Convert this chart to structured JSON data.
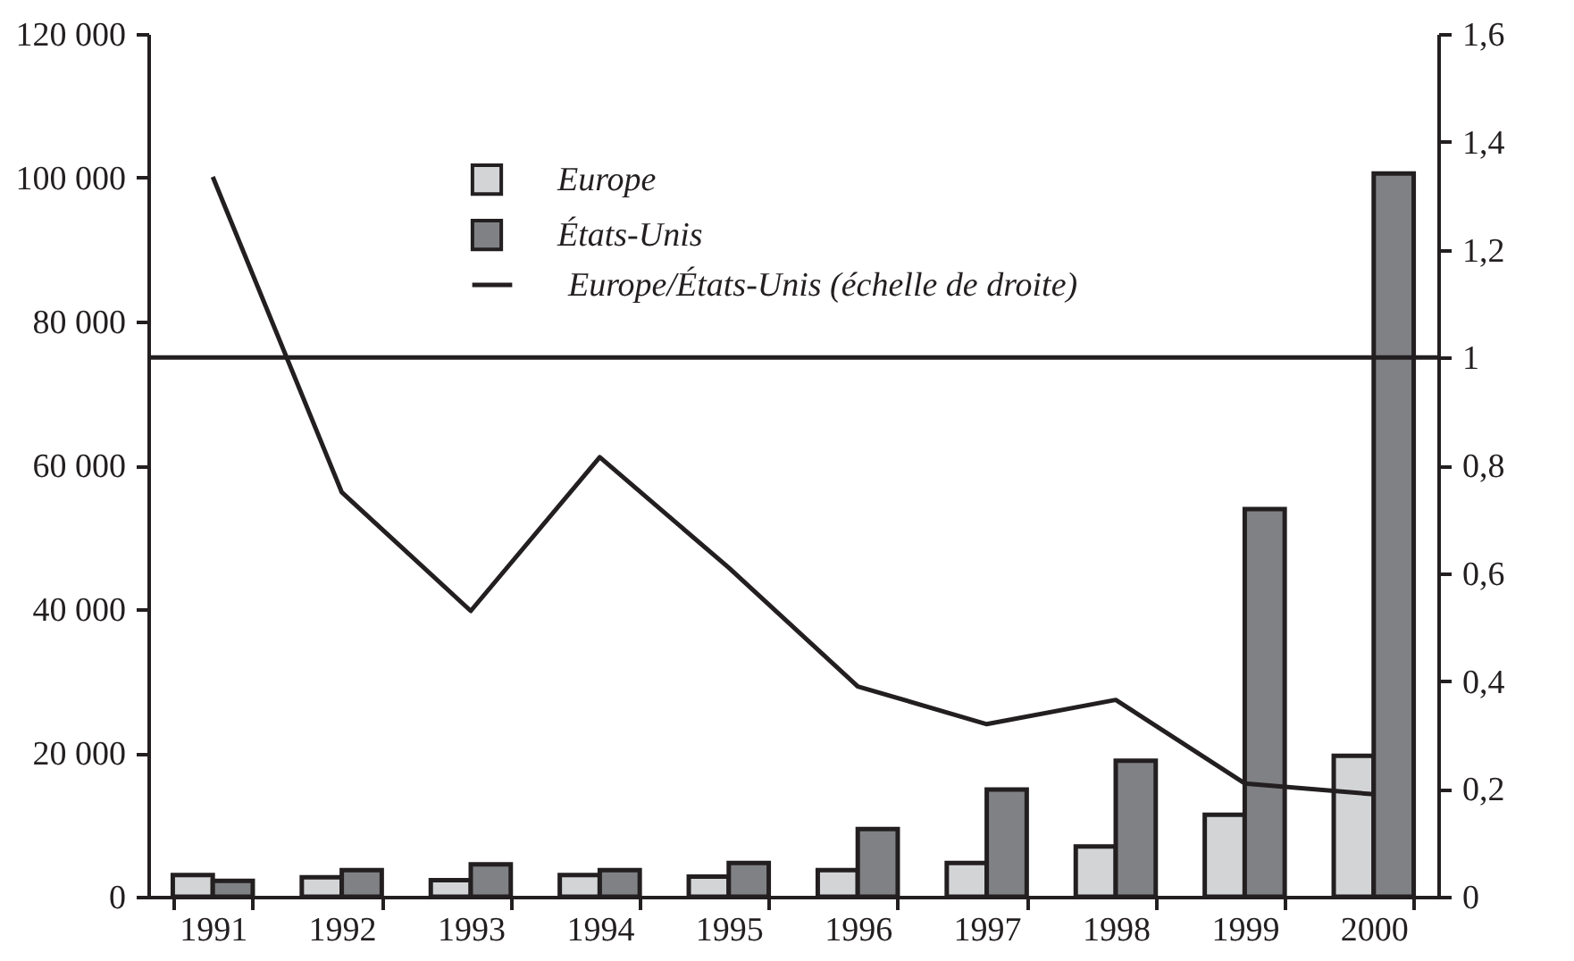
{
  "chart_data": {
    "type": "bar",
    "categories": [
      "1991",
      "1992",
      "1993",
      "1994",
      "1995",
      "1996",
      "1997",
      "1998",
      "1999",
      "2000"
    ],
    "series": [
      {
        "name": "Europe",
        "color": "#d3d4d6",
        "values": [
          3000,
          2700,
          2300,
          3000,
          2800,
          3700,
          4700,
          7000,
          11400,
          19600
        ]
      },
      {
        "name": "États-Unis",
        "color": "#808184",
        "values": [
          2200,
          3700,
          4500,
          3700,
          4700,
          9400,
          14900,
          18900,
          53900,
          100600
        ]
      },
      {
        "name": "Europe/États-Unis (échelle de droite)",
        "type": "line",
        "axis": "y2",
        "color": "#231f20",
        "values": [
          1.335,
          0.75,
          0.53,
          0.815,
          0.61,
          0.39,
          0.32,
          0.365,
          0.21,
          0.19
        ]
      }
    ],
    "ylim": [
      0,
      120000
    ],
    "yticks": [
      0,
      {
        "value": 20000,
        "label": "20 000"
      },
      {
        "value": 40000,
        "label": "40 000"
      },
      {
        "value": 60000,
        "label": "60 000"
      },
      {
        "value": 80000,
        "label": "80 000"
      },
      {
        "value": 100000,
        "label": "100 000"
      },
      {
        "value": 120000,
        "label": "120 000"
      }
    ],
    "y2lim": [
      0,
      1.6
    ],
    "y2ticks": [
      0,
      {
        "value": 0.2,
        "label": "0,2"
      },
      {
        "value": 0.4,
        "label": "0,4"
      },
      {
        "value": 0.6,
        "label": "0,6"
      },
      {
        "value": 0.8,
        "label": "0,8"
      },
      1,
      {
        "value": 1.2,
        "label": "1,2"
      },
      {
        "value": 1.4,
        "label": "1,4"
      },
      {
        "value": 1.6,
        "label": "1,6"
      }
    ],
    "ref_lines": [
      {
        "axis": "y2",
        "value": 1
      }
    ],
    "legend": "top",
    "grid": false
  }
}
